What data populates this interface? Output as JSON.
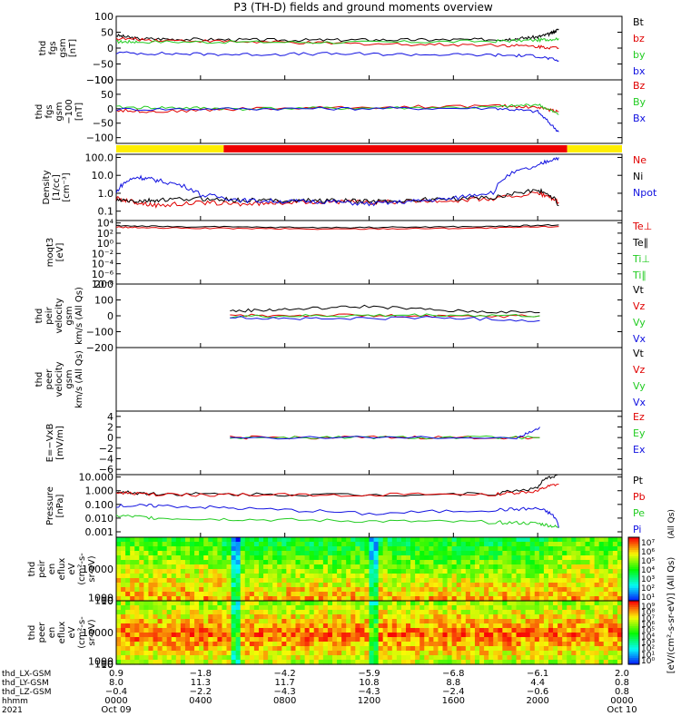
{
  "title": "P3 (TH-D) fields and ground moments overview",
  "colors": {
    "black": "#000000",
    "red": "#e00000",
    "green": "#22cc22",
    "blue": "#1010e0",
    "yellow": "#ffee00",
    "redbar": "#ee0000"
  },
  "chart_data": [
    {
      "type": "line",
      "ylabel": [
        "thd",
        "fgs",
        "gsm",
        "[nT]"
      ],
      "ticks": [
        "100",
        "50",
        "0",
        "−50",
        "−100"
      ],
      "tick_values": [
        100,
        50,
        0,
        -50,
        -100
      ],
      "ylim": [
        -100,
        100
      ],
      "legend": [
        [
          "Bt",
          "black"
        ],
        [
          "bz",
          "red"
        ],
        [
          "by",
          "green"
        ],
        [
          "bx",
          "blue"
        ]
      ],
      "series": [
        {
          "name": "Bt",
          "x": [
            0,
            1,
            3,
            6,
            9,
            12,
            15,
            18,
            19,
            20,
            20.6,
            21
          ],
          "y": [
            40,
            30,
            28,
            26,
            25,
            26,
            26,
            27,
            30,
            35,
            45,
            60
          ]
        },
        {
          "name": "bz",
          "x": [
            0,
            2,
            6,
            10,
            14,
            18,
            20,
            21
          ],
          "y": [
            30,
            25,
            20,
            15,
            12,
            10,
            5,
            0
          ]
        },
        {
          "name": "by",
          "x": [
            0,
            1,
            6,
            12,
            18,
            20,
            21
          ],
          "y": [
            20,
            20,
            19,
            18,
            22,
            25,
            30
          ]
        },
        {
          "name": "bx",
          "x": [
            0,
            3,
            6,
            10,
            14,
            18,
            20,
            21
          ],
          "y": [
            -15,
            -18,
            -20,
            -18,
            -20,
            -22,
            -25,
            -40
          ]
        }
      ]
    },
    {
      "type": "line",
      "ylabel": [
        "thd",
        "fgs",
        "gsm",
        "−100",
        "[nT]"
      ],
      "ticks": [
        "100",
        "50",
        "0",
        "−50",
        "−100"
      ],
      "tick_values": [
        100,
        50,
        0,
        -50,
        -100
      ],
      "ylim": [
        -120,
        100
      ],
      "legend": [
        [
          "Bz",
          "red"
        ],
        [
          "By",
          "green"
        ],
        [
          "Bx",
          "blue"
        ]
      ],
      "series": [
        {
          "name": "Bz",
          "x": [
            0,
            2,
            6,
            12,
            18,
            20,
            21
          ],
          "y": [
            -5,
            -10,
            0,
            5,
            10,
            5,
            -10
          ]
        },
        {
          "name": "By",
          "x": [
            0,
            3,
            6,
            12,
            18,
            20,
            21
          ],
          "y": [
            5,
            3,
            0,
            2,
            5,
            15,
            -20
          ]
        },
        {
          "name": "Bx",
          "x": [
            0,
            6,
            12,
            18,
            20,
            21
          ],
          "y": [
            -2,
            0,
            1,
            2,
            -10,
            -80
          ]
        }
      ]
    },
    {
      "type": "bar",
      "label": "mode",
      "segments": [
        [
          0,
          5.1,
          "yellow"
        ],
        [
          5.1,
          21.4,
          "redbar"
        ],
        [
          21.4,
          24,
          "yellow"
        ]
      ]
    },
    {
      "type": "line",
      "log": true,
      "ylabel": [
        "Density",
        "[1/cc]",
        "[cm⁻³]"
      ],
      "ticks": [
        "100.0",
        "10.0",
        "1.0",
        "0.1"
      ],
      "tick_values": [
        100,
        10,
        1,
        0.1
      ],
      "ylim": [
        0.03,
        150
      ],
      "legend": [
        [
          "Ne",
          "red"
        ],
        [
          "Ni",
          "black"
        ],
        [
          "Npot",
          "blue"
        ]
      ],
      "series": [
        {
          "name": "Ne",
          "x": [
            0,
            1,
            2,
            4,
            6,
            8,
            10,
            12,
            14,
            16,
            18,
            20,
            21
          ],
          "y": [
            0.5,
            0.3,
            0.2,
            0.3,
            0.25,
            0.3,
            0.35,
            0.3,
            0.35,
            0.4,
            0.5,
            1.0,
            0.3
          ]
        },
        {
          "name": "Ni",
          "x": [
            0,
            1,
            2,
            4,
            6,
            8,
            10,
            12,
            14,
            16,
            18,
            20,
            21
          ],
          "y": [
            0.4,
            0.35,
            0.4,
            0.5,
            0.4,
            0.4,
            0.4,
            0.35,
            0.4,
            0.5,
            0.6,
            1.5,
            0.2
          ]
        },
        {
          "name": "Npot",
          "x": [
            0,
            1,
            2,
            4,
            6,
            8,
            10,
            12,
            14,
            16,
            18,
            20,
            21
          ],
          "y": [
            1,
            8,
            5,
            0.8,
            0.4,
            0.35,
            0.35,
            0.25,
            0.35,
            0.5,
            1.2,
            30,
            100
          ]
        }
      ]
    },
    {
      "type": "line",
      "log": true,
      "ylabel": [
        "moqt3",
        "[eV]"
      ],
      "ticks": [
        "10⁴",
        "10²",
        "10⁰",
        "10⁻²",
        "10⁻⁴",
        "10⁻⁶",
        "10⁻⁸"
      ],
      "tick_values": [
        10000,
        100,
        1,
        0.01,
        0.0001,
        1e-06,
        1e-08
      ],
      "ylim": [
        1e-08,
        30000
      ],
      "legend": [
        [
          "Te⊥",
          "red"
        ],
        [
          "Te∥",
          "black"
        ],
        [
          "Ti⊥",
          "green"
        ],
        [
          "Ti∥",
          "green"
        ]
      ],
      "series": [
        {
          "name": "Te⊥",
          "x": [
            0,
            2,
            6,
            10,
            14,
            18,
            21
          ],
          "y": [
            1500,
            1000,
            800,
            600,
            800,
            1000,
            2000
          ]
        },
        {
          "name": "Te∥",
          "x": [
            0,
            2,
            6,
            10,
            14,
            18,
            21
          ],
          "y": [
            3000,
            2000,
            1500,
            1200,
            1500,
            2000,
            4000
          ]
        }
      ]
    },
    {
      "type": "line",
      "ylabel": [
        "thd",
        "peir",
        "velocity",
        "gsm",
        "km/s (All Qs)"
      ],
      "ticks": [
        "200",
        "100",
        "0",
        "−100",
        "−200"
      ],
      "tick_values": [
        200,
        100,
        0,
        -100,
        -200
      ],
      "ylim": [
        -200,
        200
      ],
      "legend": [
        [
          "Vt",
          "black"
        ],
        [
          "Vz",
          "red"
        ],
        [
          "Vy",
          "green"
        ],
        [
          "Vx",
          "blue"
        ]
      ],
      "series": [
        {
          "name": "Vt",
          "x": [
            5.4,
            8,
            12,
            16,
            20.1
          ],
          "y": [
            30,
            40,
            60,
            30,
            20
          ]
        },
        {
          "name": "Vz",
          "x": [
            5.4,
            10,
            15,
            20.1
          ],
          "y": [
            0,
            5,
            -5,
            0
          ]
        },
        {
          "name": "Vy",
          "x": [
            5.4,
            10,
            15,
            20.1
          ],
          "y": [
            -5,
            0,
            5,
            0
          ]
        },
        {
          "name": "Vx",
          "x": [
            5.4,
            10,
            15,
            20.1
          ],
          "y": [
            -10,
            -20,
            -10,
            -30
          ]
        }
      ]
    },
    {
      "type": "line",
      "ylabel": [
        "thd",
        "peer",
        "velocity",
        "gsm",
        "km/s (All Qs)"
      ],
      "ticks": [],
      "tick_values": [],
      "ylim": [
        -200,
        200
      ],
      "legend": [
        [
          "Vt",
          "black"
        ],
        [
          "Vz",
          "red"
        ],
        [
          "Vy",
          "green"
        ],
        [
          "Vx",
          "blue"
        ]
      ],
      "series": []
    },
    {
      "type": "line",
      "ylabel": [
        "E=−VxB",
        "[mV/m]"
      ],
      "ticks": [
        "4",
        "2",
        "0",
        "−2",
        "−4",
        "−6"
      ],
      "tick_values": [
        4,
        2,
        0,
        -2,
        -4,
        -6
      ],
      "ylim": [
        -7,
        5
      ],
      "legend": [
        [
          "Ez",
          "red"
        ],
        [
          "Ey",
          "green"
        ],
        [
          "Ex",
          "blue"
        ]
      ],
      "series": [
        {
          "name": "Ez",
          "x": [
            5.4,
            10,
            15,
            20.1
          ],
          "y": [
            0,
            0,
            0,
            0
          ]
        },
        {
          "name": "Ey",
          "x": [
            5.4,
            10,
            15,
            20.1
          ],
          "y": [
            0,
            0,
            0,
            0
          ]
        },
        {
          "name": "Ex",
          "x": [
            5.4,
            19,
            20.1
          ],
          "y": [
            0,
            0,
            2
          ]
        }
      ]
    },
    {
      "type": "line",
      "log": true,
      "ylabel": [
        "Pressure",
        "[nPa]"
      ],
      "ticks": [
        "10.000",
        "1.000",
        "0.100",
        "0.010",
        "0.001"
      ],
      "tick_values": [
        10,
        1,
        0.1,
        0.01,
        0.001
      ],
      "ylim": [
        0.0004,
        15
      ],
      "legend": [
        [
          "Pt",
          "black"
        ],
        [
          "Pb",
          "red"
        ],
        [
          "Pe",
          "green"
        ],
        [
          "Pi",
          "blue"
        ]
      ],
      "side_label": "(All Qs)",
      "series": [
        {
          "name": "Pt",
          "x": [
            0,
            2,
            6,
            12,
            18,
            20,
            21
          ],
          "y": [
            0.8,
            0.6,
            0.55,
            0.5,
            0.6,
            1.5,
            15
          ]
        },
        {
          "name": "Pb",
          "x": [
            0,
            2,
            6,
            12,
            18,
            20,
            21
          ],
          "y": [
            0.7,
            0.5,
            0.5,
            0.5,
            0.55,
            0.9,
            3
          ]
        },
        {
          "name": "Pe",
          "x": [
            0,
            2,
            6,
            12,
            18,
            20,
            21
          ],
          "y": [
            0.015,
            0.01,
            0.008,
            0.006,
            0.005,
            0.004,
            0.002
          ]
        },
        {
          "name": "Pi",
          "x": [
            0,
            2,
            6,
            12,
            18,
            20,
            21
          ],
          "y": [
            0.08,
            0.08,
            0.05,
            0.02,
            0.04,
            0.05,
            0.002
          ]
        }
      ]
    },
    {
      "type": "heatmap",
      "ylabel": [
        "thd",
        "peir",
        "en",
        "eflux",
        "eV",
        "(cm²-s-",
        "sr-eV)"
      ],
      "ticks": [
        "10000",
        "1000",
        "100",
        "10"
      ],
      "tick_values": [
        10000,
        1000,
        100,
        10
      ],
      "ylim": [
        6,
        20000
      ],
      "colorbar_ticks": [
        "10⁷",
        "10⁶",
        "10⁵",
        "10⁴",
        "10³",
        "10²",
        "10¹"
      ]
    },
    {
      "type": "heatmap",
      "ylabel": [
        "thd",
        "peer",
        "en",
        "eflux",
        "eV",
        "(cm²-s-",
        "sr-eV)"
      ],
      "ticks": [
        "10000",
        "1000",
        "100",
        "10"
      ],
      "tick_values": [
        10000,
        1000,
        100,
        10
      ],
      "ylim": [
        6,
        20000
      ],
      "colorbar_ticks": [
        "10⁹",
        "10⁸",
        "10⁷",
        "10⁶",
        "10⁵",
        "10⁴",
        "10³",
        "10²",
        "10¹",
        "10⁰"
      ],
      "colorbar_label": "[eV/(cm²-s-sr-eV)] (All Qs)"
    }
  ],
  "xaxis": {
    "rows": [
      {
        "label": "thd_LX-GSM",
        "values": [
          "0.9",
          "−1.8",
          "−4.2",
          "−5.9",
          "−6.8",
          "−6.1",
          "2.0"
        ]
      },
      {
        "label": "thd_LY-GSM",
        "values": [
          "8.0",
          "11.3",
          "11.7",
          "10.8",
          "8.8",
          "4.4",
          "0.8"
        ]
      },
      {
        "label": "thd_LZ-GSM",
        "values": [
          "−0.4",
          "−2.2",
          "−4.3",
          "−4.3",
          "−2.4",
          "−0.6",
          "0.8"
        ]
      },
      {
        "label": "hhmm",
        "values": [
          "0000",
          "0400",
          "0800",
          "1200",
          "1600",
          "2000",
          "0000"
        ]
      },
      {
        "label": "2021",
        "values": [
          "Oct 09",
          "",
          "",
          "",
          "",
          "",
          "Oct 10"
        ]
      }
    ],
    "tick_hours": [
      0,
      4,
      8,
      12,
      16,
      20,
      24
    ]
  }
}
